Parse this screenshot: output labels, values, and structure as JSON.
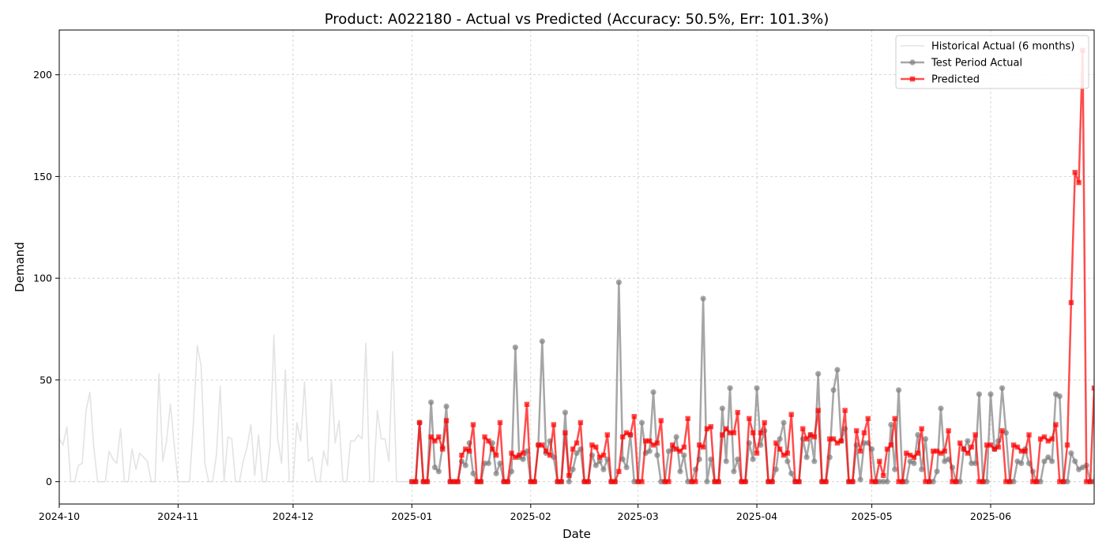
{
  "chart_data": {
    "type": "line",
    "title": "Product: A022180 - Actual vs Predicted (Accuracy: 50.5%, Err: 101.3%)",
    "xlabel": "Date",
    "ylabel": "Demand",
    "xlim": [
      "2024-10-01",
      "2025-06-28"
    ],
    "ylim": [
      -11,
      222
    ],
    "x_ticks": [
      "2024-10",
      "2024-11",
      "2024-12",
      "2025-01",
      "2025-02",
      "2025-03",
      "2025-04",
      "2025-05",
      "2025-06"
    ],
    "y_ticks": [
      0,
      50,
      100,
      150,
      200
    ],
    "grid": true,
    "legend_position": "top-right",
    "colors": {
      "historical": "#d9d9d9",
      "actual": "#808080",
      "predicted": "#ff0000"
    },
    "series": [
      {
        "name": "Historical Actual (6 months)",
        "start_date": "2024-10-01",
        "values": [
          21,
          18,
          27,
          0,
          0,
          8,
          9,
          35,
          44,
          17,
          0,
          0,
          0,
          15,
          11,
          9,
          26,
          0,
          0,
          16,
          6,
          14,
          12,
          10,
          0,
          0,
          53,
          10,
          20,
          38,
          18,
          0,
          0,
          0,
          0,
          29,
          67,
          57,
          9,
          0,
          0,
          13,
          47,
          0,
          22,
          21,
          0,
          0,
          10,
          17,
          28,
          3,
          23,
          0,
          0,
          17,
          72,
          21,
          9,
          55,
          0,
          0,
          29,
          20,
          49,
          10,
          12,
          0,
          0,
          15,
          8,
          50,
          19,
          30,
          0,
          0,
          20,
          20,
          23,
          21,
          68,
          0,
          0,
          35,
          21,
          21,
          10,
          64,
          0,
          0,
          0,
          0,
          0
        ]
      },
      {
        "name": "Test Period Actual",
        "start_date": "2025-01-01",
        "values": [
          0,
          0,
          29,
          0,
          0,
          39,
          7,
          5,
          17,
          37,
          0,
          0,
          0,
          10,
          8,
          19,
          4,
          0,
          0,
          9,
          9,
          19,
          4,
          9,
          0,
          0,
          5,
          66,
          12,
          11,
          15,
          0,
          0,
          18,
          69,
          14,
          20,
          12,
          0,
          0,
          34,
          0,
          6,
          14,
          16,
          0,
          0,
          13,
          8,
          10,
          6,
          11,
          0,
          0,
          98,
          11,
          7,
          23,
          0,
          0,
          29,
          14,
          15,
          44,
          13,
          0,
          0,
          15,
          16,
          22,
          5,
          13,
          0,
          0,
          6,
          11,
          90,
          0,
          11,
          0,
          0,
          36,
          10,
          46,
          5,
          11,
          0,
          0,
          19,
          11,
          46,
          18,
          25,
          0,
          0,
          6,
          21,
          29,
          10,
          4,
          0,
          0,
          21,
          12,
          23,
          10,
          53,
          0,
          0,
          12,
          45,
          55,
          20,
          26,
          0,
          0,
          18,
          1,
          19,
          19,
          16,
          0,
          0,
          0,
          0,
          28,
          6,
          45,
          0,
          0,
          10,
          9,
          23,
          6,
          21,
          0,
          0,
          5,
          36,
          10,
          11,
          7,
          0,
          0,
          16,
          20,
          9,
          9,
          43,
          0,
          0,
          43,
          16,
          20,
          46,
          24,
          0,
          0,
          10,
          9,
          16,
          9,
          5,
          0,
          0,
          10,
          12,
          10,
          43,
          42,
          0,
          0,
          14,
          10,
          6,
          7,
          8,
          0,
          0,
          22
        ]
      },
      {
        "name": "Predicted",
        "start_date": "2025-01-01",
        "values": [
          0,
          0,
          29,
          0,
          0,
          22,
          20,
          22,
          16,
          30,
          0,
          0,
          0,
          13,
          16,
          15,
          28,
          0,
          0,
          22,
          20,
          16,
          13,
          29,
          0,
          0,
          14,
          12,
          13,
          14,
          38,
          0,
          0,
          18,
          18,
          15,
          13,
          28,
          0,
          0,
          24,
          3,
          16,
          19,
          29,
          0,
          0,
          18,
          17,
          12,
          13,
          23,
          0,
          0,
          5,
          22,
          24,
          23,
          32,
          0,
          0,
          20,
          20,
          18,
          19,
          30,
          0,
          0,
          18,
          16,
          15,
          17,
          31,
          0,
          0,
          18,
          17,
          26,
          27,
          0,
          0,
          23,
          26,
          24,
          24,
          34,
          0,
          0,
          31,
          24,
          14,
          24,
          29,
          0,
          0,
          19,
          16,
          13,
          14,
          33,
          0,
          0,
          26,
          21,
          23,
          22,
          35,
          0,
          0,
          21,
          21,
          19,
          20,
          35,
          0,
          0,
          25,
          15,
          24,
          31,
          0,
          0,
          10,
          3,
          16,
          18,
          31,
          0,
          0,
          14,
          13,
          12,
          14,
          26,
          0,
          0,
          15,
          15,
          14,
          15,
          25,
          0,
          0,
          19,
          16,
          14,
          17,
          23,
          0,
          0,
          18,
          18,
          16,
          17,
          25,
          0,
          0,
          18,
          17,
          15,
          15,
          23,
          0,
          0,
          21,
          22,
          20,
          21,
          28,
          0,
          0,
          18,
          88,
          152,
          147,
          212,
          0,
          0,
          46
        ]
      }
    ]
  }
}
